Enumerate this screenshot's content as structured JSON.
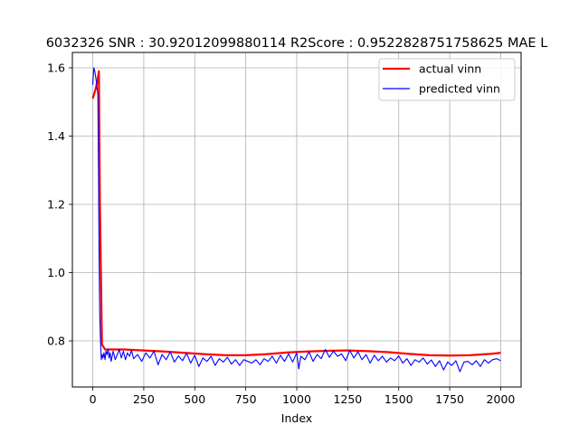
{
  "chart_data": {
    "type": "line",
    "title": "6032326  SNR : 30.92012099880114 R2Score : 0.9522828751758625 MAE L",
    "xlabel": "Index",
    "ylabel": "",
    "xlim": [
      -100,
      2100
    ],
    "ylim": [
      0.665,
      1.645
    ],
    "x_ticks": [
      0,
      250,
      500,
      750,
      1000,
      1250,
      1500,
      1750,
      2000
    ],
    "y_ticks": [
      0.8,
      1.0,
      1.2,
      1.4,
      1.6
    ],
    "x_tick_labels": [
      "0",
      "250",
      "500",
      "750",
      "1000",
      "1250",
      "1500",
      "1750",
      "2000"
    ],
    "y_tick_labels": [
      "0.8",
      "1.0",
      "1.2",
      "1.4",
      "1.6"
    ],
    "grid": true,
    "legend": "top-right",
    "series": [
      {
        "name": "actual vinn",
        "color": "#ff0000",
        "x": [
          0,
          15,
          25,
          30,
          35,
          45,
          60,
          80,
          150,
          250,
          350,
          450,
          550,
          650,
          750,
          850,
          950,
          1050,
          1150,
          1250,
          1350,
          1450,
          1550,
          1650,
          1750,
          1850,
          1950,
          2000
        ],
        "y": [
          1.51,
          1.54,
          1.57,
          1.59,
          1.2,
          0.79,
          0.775,
          0.775,
          0.775,
          0.772,
          0.769,
          0.765,
          0.761,
          0.758,
          0.758,
          0.761,
          0.766,
          0.769,
          0.771,
          0.772,
          0.77,
          0.767,
          0.762,
          0.758,
          0.757,
          0.758,
          0.762,
          0.765
        ]
      },
      {
        "name": "predicted vinn",
        "color": "#0000ff",
        "x": [
          0,
          5,
          10,
          15,
          20,
          25,
          28,
          31,
          34,
          38,
          42,
          46,
          50,
          55,
          60,
          65,
          70,
          75,
          80,
          85,
          90,
          95,
          100,
          110,
          120,
          130,
          140,
          150,
          160,
          170,
          180,
          190,
          200,
          220,
          240,
          260,
          280,
          300,
          320,
          340,
          360,
          380,
          400,
          420,
          440,
          460,
          480,
          500,
          520,
          540,
          560,
          580,
          600,
          620,
          640,
          660,
          680,
          700,
          720,
          740,
          760,
          780,
          800,
          820,
          840,
          860,
          880,
          900,
          920,
          940,
          960,
          980,
          1000,
          1010,
          1020,
          1040,
          1060,
          1080,
          1100,
          1120,
          1140,
          1160,
          1180,
          1200,
          1220,
          1240,
          1260,
          1280,
          1300,
          1320,
          1340,
          1360,
          1380,
          1400,
          1420,
          1440,
          1460,
          1480,
          1500,
          1520,
          1540,
          1560,
          1580,
          1600,
          1620,
          1640,
          1660,
          1680,
          1700,
          1720,
          1740,
          1760,
          1780,
          1800,
          1820,
          1840,
          1860,
          1880,
          1900,
          1920,
          1940,
          1960,
          1980,
          2000
        ],
        "y": [
          1.55,
          1.6,
          1.59,
          1.57,
          1.55,
          1.52,
          1.3,
          1.05,
          0.88,
          0.8,
          0.745,
          0.76,
          0.75,
          0.765,
          0.745,
          0.77,
          0.76,
          0.775,
          0.75,
          0.765,
          0.74,
          0.755,
          0.77,
          0.745,
          0.76,
          0.775,
          0.75,
          0.77,
          0.745,
          0.765,
          0.755,
          0.772,
          0.748,
          0.76,
          0.74,
          0.765,
          0.75,
          0.77,
          0.73,
          0.76,
          0.745,
          0.768,
          0.738,
          0.756,
          0.742,
          0.764,
          0.735,
          0.758,
          0.725,
          0.75,
          0.74,
          0.755,
          0.728,
          0.748,
          0.738,
          0.752,
          0.732,
          0.745,
          0.728,
          0.745,
          0.74,
          0.735,
          0.745,
          0.73,
          0.748,
          0.74,
          0.755,
          0.735,
          0.758,
          0.74,
          0.762,
          0.738,
          0.765,
          0.718,
          0.755,
          0.745,
          0.768,
          0.74,
          0.76,
          0.748,
          0.775,
          0.752,
          0.77,
          0.755,
          0.762,
          0.742,
          0.772,
          0.75,
          0.768,
          0.745,
          0.76,
          0.735,
          0.758,
          0.742,
          0.755,
          0.738,
          0.75,
          0.742,
          0.756,
          0.735,
          0.748,
          0.728,
          0.745,
          0.738,
          0.75,
          0.732,
          0.744,
          0.725,
          0.742,
          0.715,
          0.738,
          0.728,
          0.742,
          0.71,
          0.738,
          0.74,
          0.73,
          0.742,
          0.725,
          0.745,
          0.735,
          0.745,
          0.748,
          0.742
        ]
      }
    ]
  }
}
